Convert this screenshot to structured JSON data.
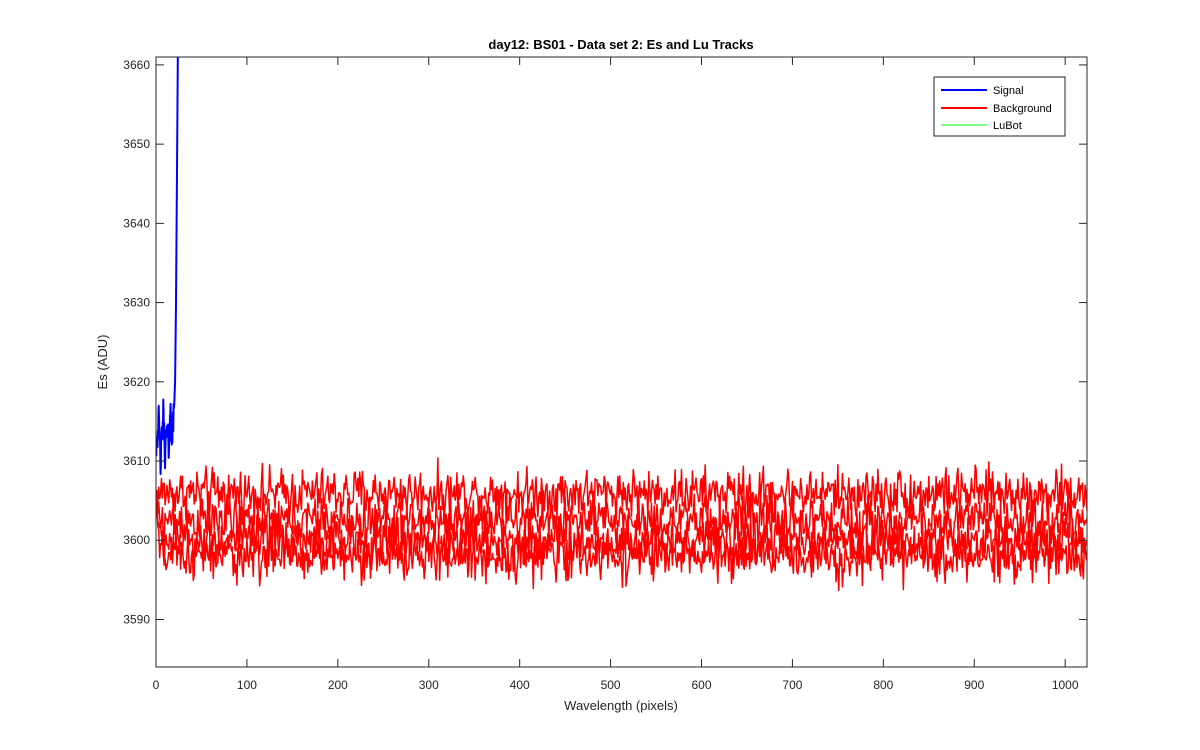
{
  "chart_data": {
    "type": "line",
    "title": "day12: BS01 - Data set 2: Es and Lu Tracks",
    "xlabel": "Wavelength (pixels)",
    "ylabel": "Es (ADU)",
    "xlim": [
      0,
      1024
    ],
    "ylim": [
      3584,
      3661
    ],
    "xticks": [
      0,
      100,
      200,
      300,
      400,
      500,
      600,
      700,
      800,
      900,
      1000
    ],
    "yticks": [
      3590,
      3600,
      3610,
      3620,
      3630,
      3640,
      3650,
      3660
    ],
    "grid": false,
    "legend_position": "top-right",
    "legend": [
      {
        "label": "Signal",
        "color": "#0000ff"
      },
      {
        "label": "Background",
        "color": "#ff0000"
      },
      {
        "label": "LuBot",
        "color": "#00ff00"
      }
    ],
    "series": [
      {
        "name": "Signal",
        "color": "#0000ff",
        "approximate_trace": true,
        "points": [
          [
            0,
            3612
          ],
          [
            3,
            3615
          ],
          [
            5,
            3610
          ],
          [
            8,
            3616
          ],
          [
            10,
            3611
          ],
          [
            12,
            3614
          ],
          [
            14,
            3612
          ],
          [
            16,
            3616
          ],
          [
            18,
            3613
          ],
          [
            20,
            3617
          ],
          [
            21,
            3620
          ],
          [
            22,
            3630
          ],
          [
            23,
            3645
          ],
          [
            24,
            3661
          ]
        ]
      },
      {
        "name": "Background",
        "color": "#ff0000",
        "approximate_trace": true,
        "tracks": [
          {
            "mean": 3606,
            "noise": 1.5
          },
          {
            "mean": 3602.5,
            "noise": 1.5
          },
          {
            "mean": 3600,
            "noise": 1.5
          },
          {
            "mean": 3598,
            "noise": 1.5
          }
        ]
      },
      {
        "name": "LuBot",
        "color": "#00ff00",
        "visible_in_plot": false
      }
    ]
  }
}
